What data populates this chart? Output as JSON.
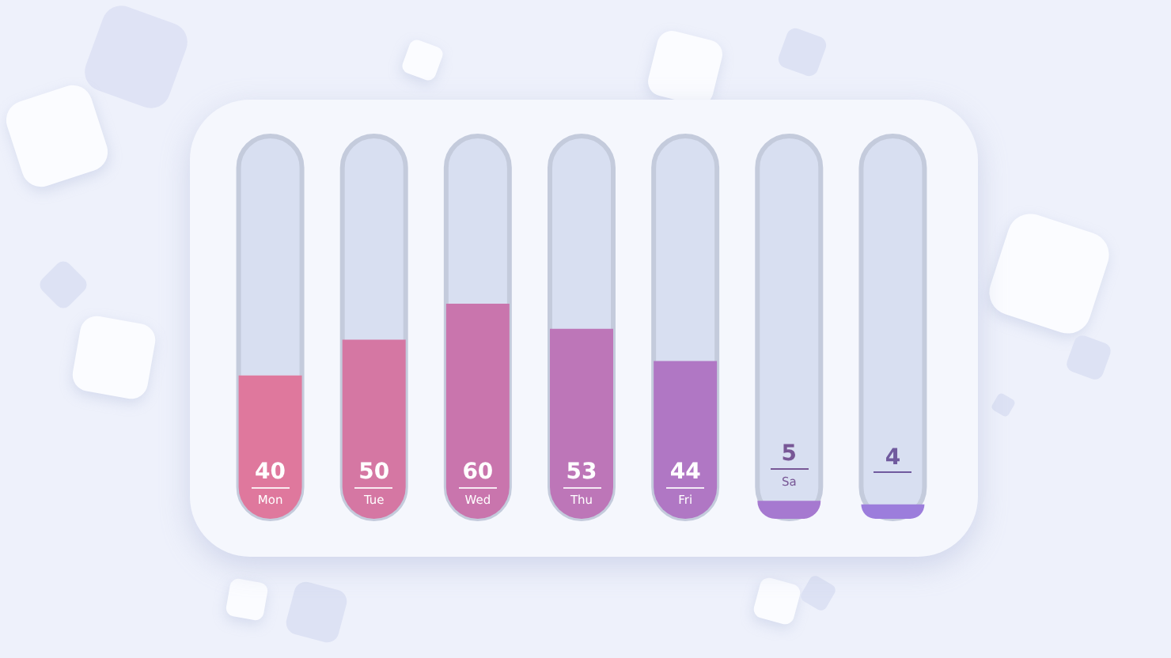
{
  "chart_data": {
    "type": "bar",
    "categories": [
      "Mon",
      "Tue",
      "Wed",
      "Thu",
      "Fri",
      "Sa",
      null
    ],
    "values": [
      40,
      50,
      60,
      53,
      44,
      5,
      4
    ],
    "data_labels": true,
    "colors": [
      "#df789d",
      "#d577a3",
      "#c975ad",
      "#bd76b8",
      "#b077c4",
      "#a679d0",
      "#9c7ddc"
    ]
  }
}
